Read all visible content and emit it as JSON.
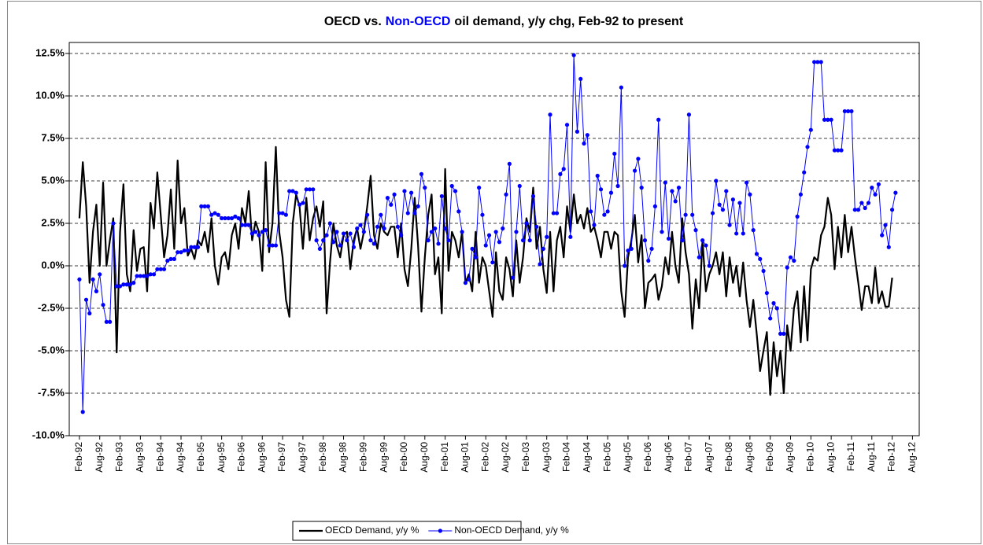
{
  "chart_data": {
    "type": "line",
    "title": [
      {
        "text": "OECD vs.",
        "color": "#000000"
      },
      {
        "text": "Non-OECD",
        "color": "#0000ff"
      },
      {
        "text": "oil demand, y/y chg, Feb-92 to present",
        "color": "#000000"
      }
    ],
    "x": [
      "Feb-92",
      "Mar-92",
      "Apr-92",
      "May-92",
      "Jun-92",
      "Jul-92",
      "Aug-92",
      "Sep-92",
      "Oct-92",
      "Nov-92",
      "Dec-92",
      "Jan-93",
      "Feb-93",
      "Mar-93",
      "Apr-93",
      "May-93",
      "Jun-93",
      "Jul-93",
      "Aug-93",
      "Sep-93",
      "Oct-93",
      "Nov-93",
      "Dec-93",
      "Jan-94",
      "Feb-94",
      "Mar-94",
      "Apr-94",
      "May-94",
      "Jun-94",
      "Jul-94",
      "Aug-94",
      "Sep-94",
      "Oct-94",
      "Nov-94",
      "Dec-94",
      "Jan-95",
      "Feb-95",
      "Mar-95",
      "Apr-95",
      "May-95",
      "Jun-95",
      "Jul-95",
      "Aug-95",
      "Sep-95",
      "Oct-95",
      "Nov-95",
      "Dec-95",
      "Jan-96",
      "Feb-96",
      "Mar-96",
      "Apr-96",
      "May-96",
      "Jun-96",
      "Jul-96",
      "Aug-96",
      "Sep-96",
      "Oct-96",
      "Nov-96",
      "Dec-96",
      "Jan-97",
      "Feb-97",
      "Mar-97",
      "Apr-97",
      "May-97",
      "Jun-97",
      "Jul-97",
      "Aug-97",
      "Sep-97",
      "Oct-97",
      "Nov-97",
      "Dec-97",
      "Jan-98",
      "Feb-98",
      "Mar-98",
      "Apr-98",
      "May-98",
      "Jun-98",
      "Jul-98",
      "Aug-98",
      "Sep-98",
      "Oct-98",
      "Nov-98",
      "Dec-98",
      "Jan-99",
      "Feb-99",
      "Mar-99",
      "Apr-99",
      "May-99",
      "Jun-99",
      "Jul-99",
      "Aug-99",
      "Sep-99",
      "Oct-99",
      "Nov-99",
      "Dec-99",
      "Jan-00",
      "Feb-00",
      "Mar-00",
      "Apr-00",
      "May-00",
      "Jun-00",
      "Jul-00",
      "Aug-00",
      "Sep-00",
      "Oct-00",
      "Nov-00",
      "Dec-00",
      "Jan-01",
      "Feb-01",
      "Mar-01",
      "Apr-01",
      "May-01",
      "Jun-01",
      "Jul-01",
      "Aug-01",
      "Sep-01",
      "Oct-01",
      "Nov-01",
      "Dec-01",
      "Jan-02",
      "Feb-02",
      "Mar-02",
      "Apr-02",
      "May-02",
      "Jun-02",
      "Jul-02",
      "Aug-02",
      "Sep-02",
      "Oct-02",
      "Nov-02",
      "Dec-02",
      "Jan-03",
      "Feb-03",
      "Mar-03",
      "Apr-03",
      "May-03",
      "Jun-03",
      "Jul-03",
      "Aug-03",
      "Sep-03",
      "Oct-03",
      "Nov-03",
      "Dec-03",
      "Jan-04",
      "Feb-04",
      "Mar-04",
      "Apr-04",
      "May-04",
      "Jun-04",
      "Jul-04",
      "Aug-04",
      "Sep-04",
      "Oct-04",
      "Nov-04",
      "Dec-04",
      "Jan-05",
      "Feb-05",
      "Mar-05",
      "Apr-05",
      "May-05",
      "Jun-05",
      "Jul-05",
      "Aug-05",
      "Sep-05",
      "Oct-05",
      "Nov-05",
      "Dec-05",
      "Jan-06",
      "Feb-06",
      "Mar-06",
      "Apr-06",
      "May-06",
      "Jun-06",
      "Jul-06",
      "Aug-06",
      "Sep-06",
      "Oct-06",
      "Nov-06",
      "Dec-06",
      "Jan-07",
      "Feb-07",
      "Mar-07",
      "Apr-07",
      "May-07",
      "Jun-07",
      "Jul-07",
      "Aug-07",
      "Sep-07",
      "Oct-07",
      "Nov-07",
      "Dec-07",
      "Jan-08",
      "Feb-08",
      "Mar-08",
      "Apr-08",
      "May-08",
      "Jun-08",
      "Jul-08",
      "Aug-08",
      "Sep-08",
      "Oct-08",
      "Nov-08",
      "Dec-08",
      "Jan-09",
      "Feb-09",
      "Mar-09",
      "Apr-09",
      "May-09",
      "Jun-09",
      "Jul-09",
      "Aug-09",
      "Sep-09",
      "Oct-09",
      "Nov-09",
      "Dec-09",
      "Jan-10",
      "Feb-10",
      "Mar-10",
      "Apr-10",
      "May-10",
      "Jun-10",
      "Jul-10",
      "Aug-10",
      "Sep-10",
      "Oct-10",
      "Nov-10",
      "Dec-10",
      "Jan-11",
      "Feb-11",
      "Mar-11",
      "Apr-11",
      "May-11",
      "Jun-11",
      "Jul-11",
      "Aug-11",
      "Sep-11",
      "Oct-11",
      "Nov-11",
      "Dec-11",
      "Jan-12",
      "Feb-12",
      "Mar-12"
    ],
    "series": [
      {
        "name": "OECD Demand, y/y %",
        "color": "#000000",
        "marker": false,
        "values": [
          2.8,
          6.1,
          3.5,
          -1.0,
          2.0,
          3.6,
          0.0,
          4.9,
          0.0,
          1.5,
          2.8,
          -5.1,
          2.0,
          4.8,
          -0.5,
          -1.5,
          2.1,
          -0.3,
          1.0,
          1.1,
          -1.5,
          3.7,
          2.2,
          5.5,
          3.0,
          0.5,
          1.8,
          4.5,
          1.0,
          6.2,
          2.5,
          3.4,
          0.6,
          1.0,
          0.4,
          1.5,
          1.2,
          2.0,
          0.8,
          2.8,
          0.0,
          -1.1,
          0.5,
          0.8,
          -0.2,
          1.8,
          2.5,
          1.0,
          3.4,
          2.5,
          4.4,
          1.5,
          2.6,
          2.0,
          -0.3,
          6.1,
          0.8,
          2.5,
          7.0,
          2.0,
          0.5,
          -2.0,
          -3.0,
          2.5,
          4.2,
          3.5,
          1.0,
          4.0,
          1.5,
          2.8,
          3.5,
          2.3,
          3.8,
          -2.8,
          0.2,
          2.5,
          1.2,
          0.5,
          1.8,
          2.0,
          -0.2,
          1.5,
          2.2,
          1.0,
          2.0,
          3.5,
          5.3,
          1.8,
          1.0,
          2.5,
          2.0,
          1.8,
          2.3,
          2.3,
          0.5,
          2.5,
          -0.2,
          -1.2,
          1.0,
          4.0,
          1.2,
          -2.7,
          0.5,
          3.0,
          4.2,
          -0.5,
          0.5,
          -2.8,
          5.7,
          -0.3,
          2.0,
          1.5,
          0.5,
          2.0,
          -1.0,
          -0.5,
          -1.5,
          2.0,
          -1.0,
          0.5,
          0.0,
          -1.5,
          -3.0,
          0.8,
          -1.5,
          -2.0,
          0.5,
          -0.2,
          -1.8,
          1.5,
          -1.0,
          0.5,
          2.8,
          2.0,
          4.6,
          1.0,
          2.3,
          -0.2,
          -1.6,
          2.0,
          -1.5,
          1.5,
          2.3,
          0.5,
          3.5,
          2.0,
          4.2,
          2.5,
          3.0,
          2.2,
          3.4,
          2.0,
          2.3,
          1.5,
          0.5,
          2.0,
          2.0,
          1.0,
          2.0,
          1.8,
          -1.5,
          -3.0,
          0.5,
          1.5,
          3.0,
          0.2,
          1.8,
          -2.5,
          -1.0,
          -0.8,
          -0.5,
          -2.0,
          -1.2,
          0.5,
          -0.5,
          2.0,
          0.0,
          -1.0,
          2.8,
          0.8,
          -0.5,
          -3.7,
          -0.8,
          -2.5,
          1.5,
          -1.5,
          -0.5,
          0.0,
          0.8,
          -0.5,
          0.8,
          -1.8,
          0.5,
          -1.0,
          0.0,
          -1.8,
          0.2,
          -2.0,
          -3.6,
          -2.0,
          -4.0,
          -6.2,
          -5.0,
          -3.9,
          -7.6,
          -4.5,
          -6.5,
          -5.0,
          -7.5,
          -3.5,
          -5.0,
          -2.5,
          -1.5,
          -4.5,
          -1.2,
          -4.4,
          -0.2,
          0.5,
          0.3,
          1.8,
          2.3,
          4.0,
          3.0,
          -0.2,
          2.3,
          0.5,
          3.0,
          0.8,
          2.3,
          0.5,
          -1.0,
          -2.6,
          -1.2,
          -1.2,
          -2.2,
          -0.1,
          -2.2,
          -1.5,
          -2.4,
          -2.4,
          -0.7,
          null
        ]
      },
      {
        "name": "Non-OECD Demand, y/y %",
        "color": "#0000ff",
        "marker": true,
        "values": [
          -0.8,
          -8.6,
          -2.0,
          -2.8,
          -0.8,
          -1.5,
          -0.5,
          -2.3,
          -3.3,
          -3.3,
          2.5,
          -1.2,
          -1.2,
          -1.1,
          -1.1,
          -1.1,
          -1.0,
          -0.6,
          -0.6,
          -0.6,
          -0.6,
          -0.5,
          -0.5,
          -0.2,
          -0.2,
          -0.2,
          0.3,
          0.4,
          0.4,
          0.8,
          0.8,
          0.9,
          0.9,
          1.1,
          1.1,
          1.1,
          3.5,
          3.5,
          3.5,
          3.0,
          3.1,
          3.0,
          2.8,
          2.8,
          2.8,
          2.8,
          2.9,
          2.8,
          2.4,
          2.4,
          2.4,
          1.9,
          2.0,
          1.8,
          2.0,
          2.1,
          1.2,
          1.2,
          1.2,
          3.1,
          3.1,
          3.0,
          4.4,
          4.4,
          4.3,
          3.6,
          3.7,
          4.5,
          4.5,
          4.5,
          1.5,
          1.0,
          1.5,
          1.8,
          2.5,
          1.4,
          2.0,
          1.2,
          1.9,
          1.5,
          1.9,
          1.1,
          2.2,
          2.4,
          2.0,
          3.0,
          1.5,
          1.3,
          2.3,
          3.0,
          2.2,
          4.0,
          3.6,
          4.2,
          2.3,
          1.8,
          4.4,
          3.1,
          4.3,
          3.1,
          3.5,
          5.4,
          4.6,
          1.5,
          2.0,
          2.2,
          1.3,
          4.1,
          2.2,
          1.5,
          4.7,
          4.4,
          3.2,
          2.0,
          -1.0,
          -0.8,
          1.0,
          0.5,
          4.6,
          3.0,
          1.2,
          1.8,
          0.2,
          2.0,
          1.4,
          2.2,
          4.2,
          6.0,
          -0.7,
          2.0,
          4.7,
          1.5,
          2.5,
          1.5,
          4.1,
          2.3,
          0.1,
          1.0,
          1.7,
          8.9,
          3.1,
          3.1,
          5.4,
          5.7,
          8.3,
          1.7,
          12.4,
          7.9,
          11.0,
          7.2,
          7.7,
          3.2,
          2.4,
          5.3,
          4.5,
          3.0,
          3.2,
          4.3,
          6.6,
          4.7,
          10.5,
          0.0,
          0.9,
          1.0,
          5.6,
          6.3,
          4.6,
          1.5,
          0.3,
          1.0,
          3.5,
          8.6,
          2.0,
          4.9,
          1.6,
          4.4,
          3.8,
          4.6,
          1.5,
          3.0,
          8.9,
          3.0,
          2.1,
          0.5,
          1.5,
          1.2,
          0.0,
          3.1,
          5.0,
          3.6,
          3.3,
          4.4,
          2.4,
          3.9,
          1.9,
          3.7,
          1.9,
          4.9,
          4.2,
          2.1,
          0.7,
          0.4,
          -0.3,
          -1.6,
          -3.1,
          -2.2,
          -2.5,
          -4.0,
          -4.0,
          -0.1,
          0.5,
          0.3,
          2.9,
          4.2,
          5.5,
          7.0,
          8.0,
          12.0,
          12.0,
          12.0,
          8.6,
          8.6,
          8.6,
          6.8,
          6.8,
          6.8,
          9.1,
          9.1,
          9.1,
          3.3,
          3.3,
          3.7,
          3.4,
          3.7,
          4.6,
          4.2,
          4.8,
          1.8,
          2.4,
          1.1,
          3.3,
          4.3
        ]
      }
    ],
    "xlim": [
      "Nov-91",
      "Oct-12"
    ],
    "xticks": [
      "Feb-92",
      "Aug-92",
      "Feb-93",
      "Aug-93",
      "Feb-94",
      "Aug-94",
      "Feb-95",
      "Aug-95",
      "Feb-96",
      "Aug-96",
      "Feb-97",
      "Aug-97",
      "Feb-98",
      "Aug-98",
      "Feb-99",
      "Aug-99",
      "Feb-00",
      "Aug-00",
      "Feb-01",
      "Aug-01",
      "Feb-02",
      "Aug-02",
      "Feb-03",
      "Aug-03",
      "Feb-04",
      "Aug-04",
      "Feb-05",
      "Aug-05",
      "Feb-06",
      "Aug-06",
      "Feb-07",
      "Aug-07",
      "Feb-08",
      "Aug-08",
      "Feb-09",
      "Aug-09",
      "Feb-10",
      "Aug-10",
      "Feb-11",
      "Aug-11",
      "Feb-12",
      "Aug-12"
    ],
    "ylim": [
      -10,
      12.5
    ],
    "yticks": [
      {
        "value": 12.5,
        "label": "12.5%"
      },
      {
        "value": 10,
        "label": "10.0%"
      },
      {
        "value": 7.5,
        "label": "7.5%"
      },
      {
        "value": 5,
        "label": "5.0%"
      },
      {
        "value": 2.5,
        "label": "2.5%"
      },
      {
        "value": 0,
        "label": "0.0%"
      },
      {
        "value": -2.5,
        "label": "-2.5%"
      },
      {
        "value": -5,
        "label": "-5.0%"
      },
      {
        "value": -7.5,
        "label": "-7.5%"
      },
      {
        "value": -10,
        "label": "-10.0%"
      }
    ],
    "grid": true,
    "legend": "bottom"
  }
}
